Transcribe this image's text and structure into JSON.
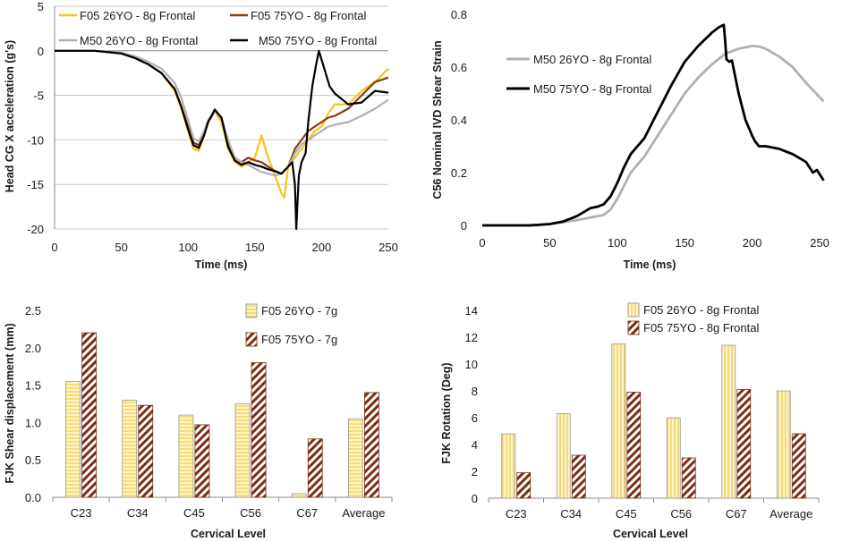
{
  "colors": {
    "yellow": "#f5c518",
    "brown": "#8b3a13",
    "gray": "#b0b0b0",
    "black": "#000000",
    "grid": "#c8c8c8",
    "barYellowFill": "#fdf3c4",
    "barYellowStripe": "#f0c830",
    "barBrownStripe": "#7a2e14"
  },
  "chart_data": [
    {
      "type": "line",
      "title": "",
      "xlabel": "Time (ms)",
      "ylabel": "Head CG X acceleration (g's)",
      "xlim": [
        0,
        250
      ],
      "ylim": [
        -20,
        5
      ],
      "xticks": [
        0,
        50,
        100,
        150,
        200,
        250
      ],
      "yticks": [
        5,
        0,
        -5,
        -10,
        -15,
        -20
      ],
      "grid": true,
      "legend_position": "top",
      "series": [
        {
          "name": "F05 26YO - 8g Frontal",
          "color_key": "yellow",
          "x": [
            0,
            30,
            50,
            60,
            70,
            80,
            90,
            95,
            100,
            104,
            108,
            112,
            115,
            120,
            125,
            130,
            135,
            140,
            145,
            150,
            155,
            160,
            165,
            170,
            172,
            175,
            180,
            185,
            190,
            195,
            200,
            205,
            210,
            220,
            230,
            240,
            250
          ],
          "y": [
            0,
            0,
            -0.3,
            -0.8,
            -1.5,
            -2.5,
            -4.5,
            -6.5,
            -9,
            -11,
            -11.2,
            -9.5,
            -8,
            -6.8,
            -8,
            -11,
            -12.5,
            -13,
            -12.5,
            -12,
            -9.5,
            -12,
            -14,
            -16,
            -16.5,
            -13,
            -12,
            -11,
            -10,
            -9,
            -8.5,
            -7,
            -6,
            -6,
            -4.5,
            -3.5,
            -2
          ]
        },
        {
          "name": "F05 75YO - 8g Frontal",
          "color_key": "brown",
          "x": [
            0,
            30,
            50,
            60,
            70,
            80,
            90,
            95,
            100,
            104,
            108,
            112,
            115,
            120,
            125,
            130,
            135,
            140,
            145,
            150,
            155,
            160,
            165,
            170,
            175,
            180,
            185,
            190,
            195,
            200,
            205,
            210,
            220,
            230,
            240,
            250
          ],
          "y": [
            0,
            0,
            -0.3,
            -0.8,
            -1.5,
            -2.5,
            -4.3,
            -6.3,
            -8.5,
            -10.3,
            -10.6,
            -9.3,
            -8,
            -6.8,
            -7.5,
            -10.5,
            -12,
            -12.5,
            -12,
            -12.3,
            -12.5,
            -13,
            -13.5,
            -13.8,
            -13,
            -11,
            -10,
            -9,
            -8.5,
            -8,
            -7.5,
            -7.3,
            -6.5,
            -5,
            -3.5,
            -3
          ]
        },
        {
          "name": "M50 26YO - 8g Frontal",
          "color_key": "gray",
          "x": [
            0,
            30,
            50,
            60,
            70,
            80,
            90,
            95,
            100,
            104,
            108,
            112,
            115,
            120,
            125,
            130,
            135,
            140,
            145,
            150,
            155,
            160,
            165,
            170,
            175,
            180,
            185,
            190,
            195,
            200,
            205,
            210,
            220,
            230,
            240,
            250
          ],
          "y": [
            0,
            0,
            -0.2,
            -0.6,
            -1.2,
            -2,
            -3.6,
            -5.3,
            -7.8,
            -9.8,
            -10.2,
            -9,
            -7.8,
            -6.8,
            -7.5,
            -10,
            -12,
            -12.5,
            -12.8,
            -13.2,
            -13.6,
            -13.8,
            -14,
            -13.8,
            -13,
            -11.5,
            -10.5,
            -10,
            -9.5,
            -9,
            -8.5,
            -8.3,
            -8,
            -7.3,
            -6.5,
            -5.5
          ]
        },
        {
          "name": "M50 75YO - 8g Frontal",
          "color_key": "black",
          "x": [
            0,
            30,
            50,
            60,
            70,
            80,
            90,
            95,
            100,
            104,
            108,
            112,
            115,
            120,
            125,
            130,
            135,
            140,
            145,
            150,
            155,
            160,
            165,
            170,
            175,
            178,
            180,
            181,
            182,
            183,
            185,
            188,
            190,
            193,
            196,
            198,
            200,
            203,
            206,
            210,
            220,
            230,
            240,
            250
          ],
          "y": [
            0,
            0,
            -0.3,
            -0.8,
            -1.5,
            -2.5,
            -4.3,
            -6.3,
            -8.8,
            -10.6,
            -10.9,
            -9.5,
            -8,
            -6.6,
            -7.5,
            -10.8,
            -12.3,
            -12.8,
            -12.5,
            -12.8,
            -13,
            -13.3,
            -13.5,
            -13.8,
            -13,
            -12.5,
            -15,
            -20,
            -17,
            -14,
            -12.5,
            -11.5,
            -8,
            -4,
            -1.5,
            0,
            -1,
            -2.5,
            -4,
            -4.8,
            -6,
            -5.8,
            -4.5,
            -4.7
          ]
        }
      ]
    },
    {
      "type": "line",
      "title": "",
      "xlabel": "Time (ms)",
      "ylabel": "C56 Nominal IVD Shear Strain",
      "xlim": [
        0,
        250
      ],
      "ylim": [
        0,
        0.8
      ],
      "xticks": [
        0,
        50,
        100,
        150,
        200,
        250
      ],
      "yticks": [
        0.8,
        0.6,
        0.4,
        0.2,
        0
      ],
      "ytick_labels": [
        "0.8",
        "0.6",
        "0.4",
        "0.2",
        "0"
      ],
      "grid": false,
      "legend_position": "left",
      "series": [
        {
          "name": "M50 26YO - 8g Frontal",
          "color_key": "gray",
          "x": [
            0,
            40,
            50,
            60,
            70,
            80,
            90,
            95,
            100,
            110,
            120,
            130,
            140,
            150,
            160,
            170,
            180,
            190,
            195,
            200,
            205,
            210,
            220,
            230,
            240,
            253
          ],
          "y": [
            0,
            0,
            0.005,
            0.012,
            0.02,
            0.03,
            0.04,
            0.06,
            0.1,
            0.2,
            0.26,
            0.34,
            0.42,
            0.5,
            0.56,
            0.61,
            0.65,
            0.67,
            0.675,
            0.68,
            0.678,
            0.67,
            0.64,
            0.6,
            0.54,
            0.47
          ]
        },
        {
          "name": "M50 75YO - 8g Frontal",
          "color_key": "black",
          "x": [
            0,
            35,
            50,
            60,
            70,
            75,
            80,
            85,
            90,
            95,
            100,
            105,
            110,
            115,
            120,
            130,
            140,
            150,
            160,
            170,
            175,
            179,
            180,
            181,
            183,
            185,
            190,
            195,
            200,
            202,
            205,
            210,
            220,
            230,
            240,
            245,
            248,
            253
          ],
          "y": [
            0,
            0,
            0.005,
            0.015,
            0.035,
            0.05,
            0.065,
            0.07,
            0.08,
            0.11,
            0.16,
            0.22,
            0.27,
            0.3,
            0.33,
            0.43,
            0.53,
            0.62,
            0.68,
            0.73,
            0.75,
            0.76,
            0.7,
            0.63,
            0.62,
            0.625,
            0.5,
            0.4,
            0.34,
            0.32,
            0.3,
            0.3,
            0.29,
            0.27,
            0.24,
            0.2,
            0.21,
            0.17
          ]
        }
      ]
    },
    {
      "type": "bar",
      "title": "",
      "xlabel": "Cervical Level",
      "ylabel": "FJK Shear displacement (mm)",
      "ylim": [
        0,
        2.5
      ],
      "yticks": [
        2.5,
        2.0,
        1.5,
        1.0,
        0.5,
        0.0
      ],
      "ytick_labels": [
        "2.5",
        "2.0",
        "1.5",
        "1.0",
        "0.5",
        "0.0"
      ],
      "categories": [
        "C23",
        "C34",
        "C45",
        "C56",
        "C67",
        "Average"
      ],
      "grid": false,
      "legend_position": "top-center",
      "series": [
        {
          "name": "F05 26YO - 7g",
          "pattern": "horizontal-stripes",
          "values": [
            1.55,
            1.3,
            1.1,
            1.25,
            0.05,
            1.05
          ]
        },
        {
          "name": "F05 75YO - 7g",
          "pattern": "diagonal-stripes",
          "values": [
            2.2,
            1.23,
            0.97,
            1.8,
            0.78,
            1.4
          ]
        }
      ]
    },
    {
      "type": "bar",
      "title": "",
      "xlabel": "Cervical Level",
      "ylabel": "FJK Rotation (Deg)",
      "ylim": [
        0,
        14
      ],
      "yticks": [
        14,
        12,
        10,
        8,
        6,
        4,
        2,
        0
      ],
      "ytick_labels": [
        "14",
        "12",
        "10",
        "8",
        "6",
        "4",
        "2",
        "0"
      ],
      "categories": [
        "C23",
        "C34",
        "C45",
        "C56",
        "C67",
        "Average"
      ],
      "grid": false,
      "legend_position": "top-right",
      "series": [
        {
          "name": "F05 26YO - 8g Frontal",
          "pattern": "vertical-stripes",
          "values": [
            4.8,
            6.3,
            11.5,
            6,
            11.4,
            8
          ]
        },
        {
          "name": "F05 75YO - 8g Frontal",
          "pattern": "diagonal-stripes",
          "values": [
            1.9,
            3.2,
            7.9,
            3,
            8.1,
            4.8
          ]
        }
      ]
    }
  ]
}
